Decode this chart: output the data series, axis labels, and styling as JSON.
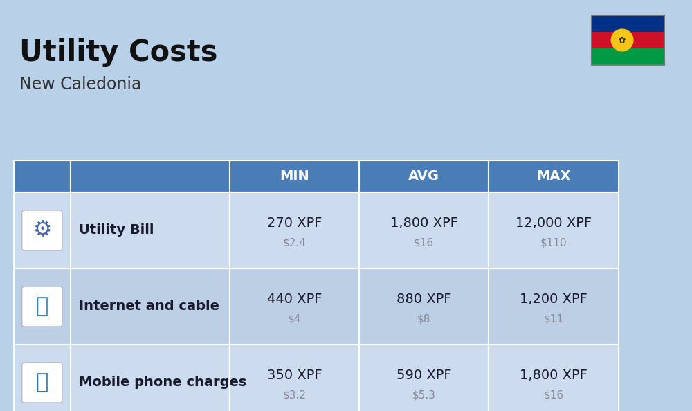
{
  "title": "Utility Costs",
  "subtitle": "New Caledonia",
  "background_color": "#b8d0e8",
  "header_color": "#4a7db5",
  "header_text_color": "#ffffff",
  "row_colors": [
    "#ccdcee",
    "#bccfe4"
  ],
  "cell_text_color": "#1a1a2e",
  "usd_text_color": "#888899",
  "columns": [
    "",
    "",
    "MIN",
    "AVG",
    "MAX"
  ],
  "rows": [
    {
      "label": "Utility Bill",
      "icon": "utility",
      "min_xpf": "270 XPF",
      "min_usd": "$2.4",
      "avg_xpf": "1,800 XPF",
      "avg_usd": "$16",
      "max_xpf": "12,000 XPF",
      "max_usd": "$110"
    },
    {
      "label": "Internet and cable",
      "icon": "internet",
      "min_xpf": "440 XPF",
      "min_usd": "$4",
      "avg_xpf": "880 XPF",
      "avg_usd": "$8",
      "max_xpf": "1,200 XPF",
      "max_usd": "$11"
    },
    {
      "label": "Mobile phone charges",
      "icon": "mobile",
      "min_xpf": "350 XPF",
      "min_usd": "$3.2",
      "avg_xpf": "590 XPF",
      "avg_usd": "$5.3",
      "max_xpf": "1,800 XPF",
      "max_usd": "$16"
    }
  ],
  "title_fontsize": 30,
  "subtitle_fontsize": 17,
  "header_fontsize": 14,
  "label_fontsize": 14,
  "value_fontsize": 14,
  "usd_fontsize": 11,
  "flag_stripes": [
    "#003087",
    "#ce1126",
    "#009a44"
  ],
  "flag_emblem_color": "#f5c518"
}
